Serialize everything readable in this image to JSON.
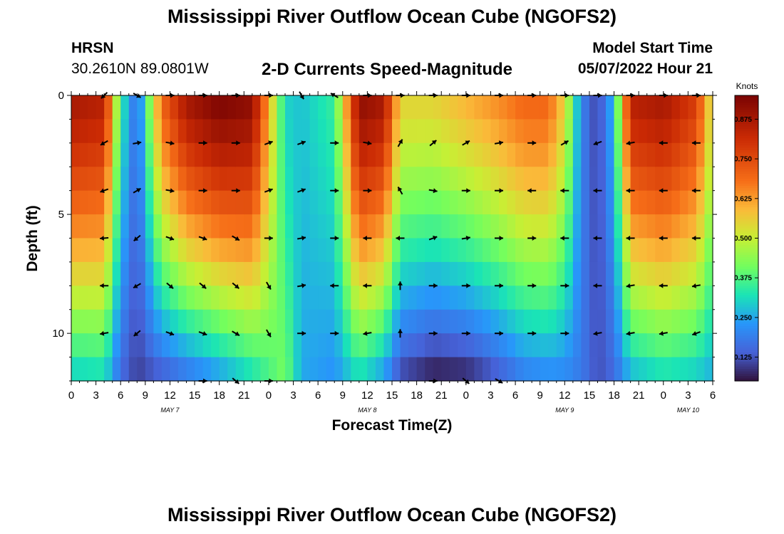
{
  "header": {
    "title": "Mississippi River Outflow Ocean Cube (NGOFS2)",
    "station": "HRSN",
    "coords": "30.2610N  89.0801W",
    "subtitle": "2-D Currents Speed-Magnitude",
    "model_label": "Model Start Time",
    "model_time": "05/07/2022 Hour 21"
  },
  "footer": {
    "title": "Mississippi River Outflow Ocean Cube (NGOFS2)"
  },
  "chart_data": {
    "type": "heatmap",
    "title": "2-D Currents Speed-Magnitude",
    "xlabel": "Forecast Time(Z)",
    "ylabel": "Depth (ft)",
    "x_tick_labels": [
      "0",
      "3",
      "6",
      "9",
      "12",
      "15",
      "18",
      "21",
      "0",
      "3",
      "6",
      "9",
      "12",
      "15",
      "18",
      "21",
      "0",
      "3",
      "6",
      "9",
      "12",
      "15",
      "18",
      "21",
      "0",
      "3",
      "6"
    ],
    "x_day_labels": [
      {
        "label": "MAY 7",
        "hour": 12
      },
      {
        "label": "MAY 8",
        "hour": 36
      },
      {
        "label": "MAY 9",
        "hour": 60
      },
      {
        "label": "MAY 10",
        "hour": 75
      }
    ],
    "x_range_hours": [
      0,
      78
    ],
    "y_ticks": [
      0,
      5,
      10
    ],
    "y_tick_labels": [
      "0",
      "5",
      "10"
    ],
    "y_range_ft": [
      0,
      12
    ],
    "colorbar": {
      "label": "Knots",
      "range": [
        0.05,
        0.95
      ],
      "ticks": [
        0.125,
        0.25,
        0.375,
        0.5,
        0.625,
        0.75,
        0.875
      ],
      "tick_labels": [
        "0.125",
        "0.250",
        "0.375",
        "0.500",
        "0.625",
        "0.750",
        "0.875"
      ]
    },
    "depth_levels_ft": [
      0,
      2,
      4,
      6,
      8,
      10,
      12
    ],
    "time_profile": {
      "hours": [
        0,
        4,
        6,
        8,
        11,
        14,
        18,
        22,
        26,
        28,
        32,
        35,
        38,
        40,
        44,
        48,
        52,
        55,
        58,
        60,
        62,
        64,
        66,
        68,
        72,
        76,
        78
      ],
      "surface": [
        0.88,
        0.85,
        0.35,
        0.15,
        0.7,
        0.88,
        0.95,
        0.92,
        0.3,
        0.28,
        0.35,
        0.92,
        0.88,
        0.55,
        0.55,
        0.6,
        0.65,
        0.7,
        0.7,
        0.55,
        0.2,
        0.1,
        0.28,
        0.85,
        0.88,
        0.78,
        0.5
      ],
      "bottom": [
        0.28,
        0.3,
        0.15,
        0.1,
        0.12,
        0.16,
        0.22,
        0.3,
        0.42,
        0.25,
        0.22,
        0.3,
        0.22,
        0.1,
        0.05,
        0.06,
        0.12,
        0.18,
        0.2,
        0.2,
        0.18,
        0.12,
        0.15,
        0.25,
        0.3,
        0.28,
        0.25
      ]
    },
    "vectors": {
      "hours_start": 4,
      "hours_step": 4,
      "count": 19,
      "depths_ft": [
        0,
        2,
        4,
        6,
        8,
        10,
        12
      ],
      "angles_deg": [
        [
          225,
          330,
          0,
          0,
          0,
          0,
          300,
          150,
          0,
          0,
          0,
          0,
          0,
          0,
          0,
          0,
          0,
          0,
          0
        ],
        [
          210,
          10,
          350,
          0,
          0,
          20,
          20,
          0,
          350,
          60,
          40,
          30,
          10,
          0,
          30,
          200,
          190,
          180,
          180
        ],
        [
          200,
          30,
          350,
          0,
          0,
          20,
          20,
          0,
          0,
          120,
          350,
          0,
          0,
          180,
          180,
          180,
          180,
          180,
          180
        ],
        [
          185,
          220,
          340,
          340,
          330,
          0,
          10,
          0,
          180,
          180,
          20,
          10,
          0,
          0,
          180,
          180,
          180,
          180,
          180
        ],
        [
          180,
          210,
          320,
          320,
          320,
          300,
          10,
          180,
          180,
          90,
          0,
          0,
          0,
          0,
          0,
          180,
          190,
          180,
          190
        ],
        [
          190,
          220,
          340,
          340,
          330,
          300,
          0,
          0,
          190,
          90,
          0,
          0,
          0,
          0,
          0,
          190,
          190,
          190,
          200
        ],
        [
          null,
          null,
          null,
          0,
          320,
          0,
          null,
          null,
          null,
          null,
          0,
          320,
          330,
          null,
          null,
          null,
          null,
          null,
          null
        ]
      ]
    }
  }
}
